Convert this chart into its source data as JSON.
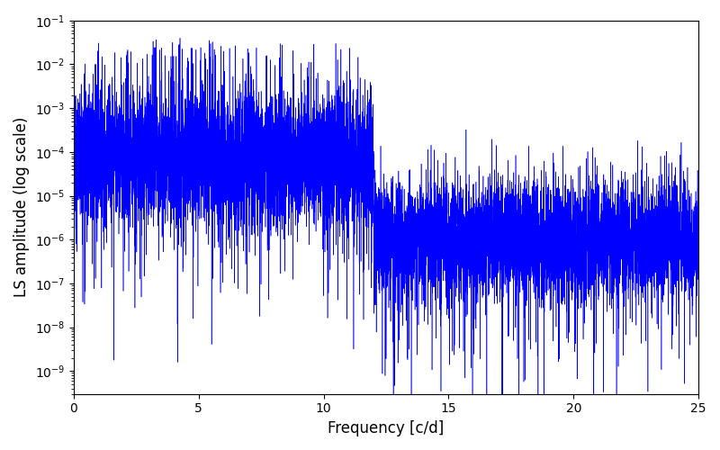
{
  "xlabel": "Frequency [c/d]",
  "ylabel": "LS amplitude (log scale)",
  "xlim": [
    0,
    25
  ],
  "ylim_log_min": 3e-10,
  "ylim_log_max": 0.1,
  "line_color": "#0000FF",
  "background_color": "#ffffff",
  "freq_max": 25.0,
  "n_points": 10000,
  "seed": 7,
  "figsize": [
    8.0,
    5.0
  ],
  "dpi": 100
}
